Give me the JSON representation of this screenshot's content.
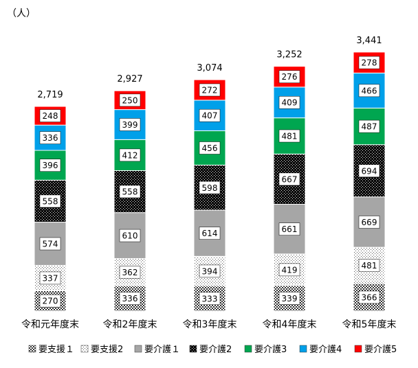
{
  "chart_data": {
    "type": "bar",
    "stacked": true,
    "unit_label": "（人）",
    "categories": [
      "令和元年度末",
      "令和2年度末",
      "令和3年度末",
      "令和4年度末",
      "令和5年度末"
    ],
    "totals": [
      "2,719",
      "2,927",
      "3,074",
      "3,252",
      "3,441"
    ],
    "series": [
      {
        "name": "要支援１",
        "values": [
          270,
          336,
          333,
          339,
          366
        ],
        "color": "#505050",
        "pattern": "cross-hatch"
      },
      {
        "name": "要支援2",
        "values": [
          337,
          362,
          394,
          419,
          481
        ],
        "color": "#ffffff",
        "pattern": "light-dots"
      },
      {
        "name": "要介護１",
        "values": [
          574,
          610,
          614,
          661,
          669
        ],
        "color": "#a6a6a6",
        "pattern": "solid"
      },
      {
        "name": "要介護2",
        "values": [
          558,
          558,
          598,
          667,
          694
        ],
        "color": "#000000",
        "pattern": "dark-dots"
      },
      {
        "name": "要介護3",
        "values": [
          396,
          412,
          456,
          481,
          487
        ],
        "color": "#00a650",
        "pattern": "solid"
      },
      {
        "name": "要介護4",
        "values": [
          336,
          399,
          407,
          409,
          466
        ],
        "color": "#00a0e9",
        "pattern": "solid"
      },
      {
        "name": "要介護5",
        "values": [
          248,
          250,
          272,
          276,
          278
        ],
        "color": "#ff0000",
        "pattern": "solid"
      }
    ],
    "ylim": [
      0,
      3900
    ],
    "grid": false,
    "legend_position": "bottom"
  }
}
